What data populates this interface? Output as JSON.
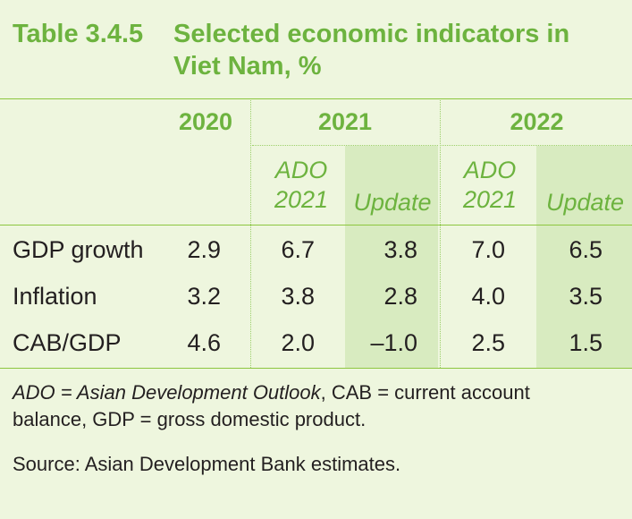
{
  "title": {
    "number": "Table 3.4.5",
    "text": "Selected economic indicators in Viet Nam, %"
  },
  "header": {
    "year_2020": "2020",
    "year_2021": "2021",
    "year_2022": "2022",
    "ado_2021_line1": "ADO",
    "ado_2021_line2": "2021",
    "update_2021": "Update",
    "ado_2022_line1": "ADO",
    "ado_2022_line2": "2021",
    "update_2022": "Update"
  },
  "rows": [
    {
      "label": "GDP growth",
      "v2020": "2.9",
      "ado2021": "6.7",
      "upd2021": "3.8",
      "ado2022": "7.0",
      "upd2022": "6.5"
    },
    {
      "label": "Inflation",
      "v2020": "3.2",
      "ado2021": "3.8",
      "upd2021": "2.8",
      "ado2022": "4.0",
      "upd2022": "3.5"
    },
    {
      "label": "CAB/GDP",
      "v2020": "4.6",
      "ado2021": "2.0",
      "upd2021": "–1.0",
      "ado2022": "2.5",
      "upd2022": "1.5"
    }
  ],
  "notes": {
    "abbr_italic": "ADO = Asian Development Outlook",
    "abbr_rest_line1": ", CAB = current account",
    "abbr_line2": "balance, GDP = gross domestic product.",
    "source": "Source: Asian Development Bank estimates."
  },
  "colors": {
    "background": "#eef6de",
    "accent_green": "#6db33f",
    "shade": "#d8ebc0",
    "text": "#231f20"
  }
}
